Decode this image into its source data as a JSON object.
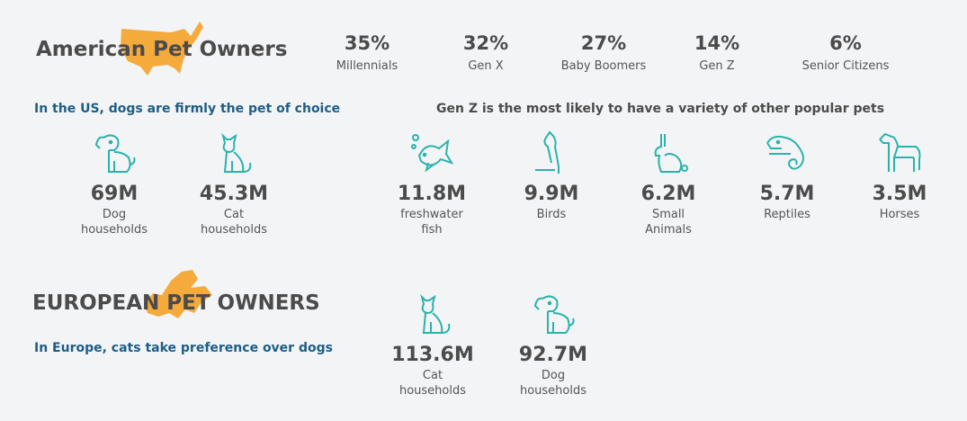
{
  "colors": {
    "accent": "#2ab3ad",
    "heading": "#4b4b4b",
    "subheading": "#1d5e86",
    "map": "#f5aa3c"
  },
  "us": {
    "title": "American Pet Owners",
    "subtitle": "In the US, dogs are firmly the pet of choice",
    "generations": [
      {
        "value": "35%",
        "label": "Millennials"
      },
      {
        "value": "32%",
        "label": "Gen X"
      },
      {
        "value": "27%",
        "label": "Baby Boomers"
      },
      {
        "value": "14%",
        "label": "Gen Z"
      },
      {
        "value": "6%",
        "label": "Senior Citizens"
      }
    ],
    "main_pets": [
      {
        "icon": "dog-icon",
        "value": "69M",
        "label": "Dog households"
      },
      {
        "icon": "cat-icon",
        "value": "45.3M",
        "label": "Cat households"
      }
    ],
    "other_title": "Gen Z is the most likely to have a variety of other popular pets",
    "other_pets": [
      {
        "icon": "fish-icon",
        "value": "11.8M",
        "label": "freshwater fish"
      },
      {
        "icon": "bird-icon",
        "value": "9.9M",
        "label": "Birds"
      },
      {
        "icon": "rabbit-icon",
        "value": "6.2M",
        "label": "Small Animals"
      },
      {
        "icon": "chameleon-icon",
        "value": "5.7M",
        "label": "Reptiles"
      },
      {
        "icon": "horse-icon",
        "value": "3.5M",
        "label": "Horses"
      }
    ]
  },
  "europe": {
    "title": "EUROPEAN PET OWNERS",
    "subtitle": "In Europe, cats take preference over dogs",
    "pets": [
      {
        "icon": "cat-icon",
        "value": "113.6M",
        "label": "Cat households"
      },
      {
        "icon": "dog-icon",
        "value": "92.7M",
        "label": "Dog households"
      }
    ]
  }
}
